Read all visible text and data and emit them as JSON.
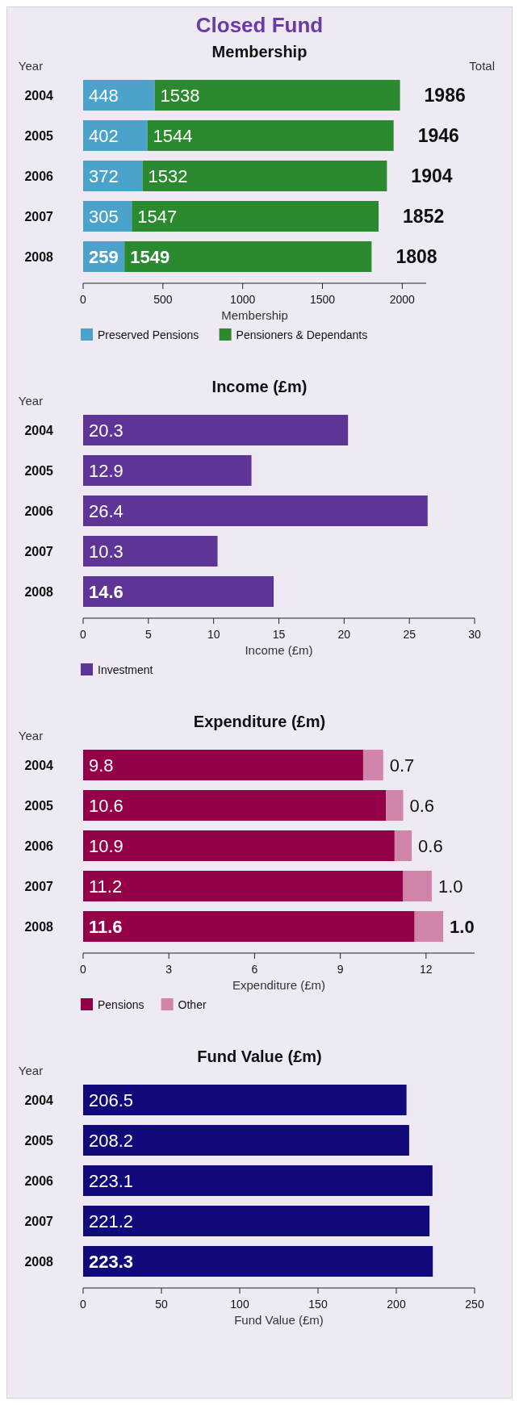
{
  "chart_data": [
    {
      "type": "bar",
      "orientation": "horizontal",
      "stacked": true,
      "title": "Closed Fund",
      "subtitle": "Membership",
      "ylabel": "Year",
      "xlabel": "Membership",
      "categories": [
        "2004",
        "2005",
        "2006",
        "2007",
        "2008"
      ],
      "series": [
        {
          "name": "Preserved Pensions",
          "color": "#4ba3cc",
          "values": [
            448,
            402,
            372,
            305,
            259
          ]
        },
        {
          "name": "Pensioners & Dependants",
          "color": "#2b8a2f",
          "values": [
            1538,
            1544,
            1532,
            1547,
            1549
          ]
        }
      ],
      "totals": [
        "1986",
        "1946",
        "1904",
        "1852",
        "1808"
      ],
      "annotations": [
        "Total"
      ],
      "xlim": [
        0,
        2150
      ],
      "xticks": [
        0,
        500,
        1000,
        1500,
        2000
      ],
      "data_labels": true,
      "legend": "bottom"
    },
    {
      "type": "bar",
      "orientation": "horizontal",
      "title": "Income (£m)",
      "ylabel": "Year",
      "xlabel": "Income (£m)",
      "categories": [
        "2004",
        "2005",
        "2006",
        "2007",
        "2008"
      ],
      "series": [
        {
          "name": "Investment",
          "color": "#5e3596",
          "values": [
            20.3,
            12.9,
            26.4,
            10.3,
            14.6
          ]
        }
      ],
      "xlim": [
        0,
        30
      ],
      "xticks": [
        0,
        5,
        10,
        15,
        20,
        25,
        30
      ],
      "data_labels": true,
      "legend": "bottom"
    },
    {
      "type": "bar",
      "orientation": "horizontal",
      "stacked": true,
      "title": "Expenditure (£m)",
      "ylabel": "Year",
      "xlabel": "Expenditure (£m)",
      "categories": [
        "2004",
        "2005",
        "2006",
        "2007",
        "2008"
      ],
      "series": [
        {
          "name": "Pensions",
          "color": "#940047",
          "values": [
            9.8,
            10.6,
            10.9,
            11.2,
            11.6
          ]
        },
        {
          "name": "Other",
          "color": "#d084aa",
          "values": [
            0.7,
            0.6,
            0.6,
            1.0,
            1.0
          ],
          "value_labels": [
            "0.7",
            "0.6",
            "0.6",
            "1.0",
            "1.0"
          ]
        }
      ],
      "xlim": [
        0,
        13.7
      ],
      "xticks": [
        0,
        3,
        6,
        9,
        12
      ],
      "data_labels": true,
      "legend": "bottom"
    },
    {
      "type": "bar",
      "orientation": "horizontal",
      "title": "Fund Value (£m)",
      "ylabel": "Year",
      "xlabel": "Fund Value (£m)",
      "categories": [
        "2004",
        "2005",
        "2006",
        "2007",
        "2008"
      ],
      "series": [
        {
          "color": "#10097a",
          "values": [
            206.5,
            208.2,
            223.1,
            221.2,
            223.3
          ]
        }
      ],
      "xlim": [
        0,
        250
      ],
      "xticks": [
        0,
        50,
        100,
        150,
        200,
        250
      ],
      "data_labels": true
    }
  ]
}
